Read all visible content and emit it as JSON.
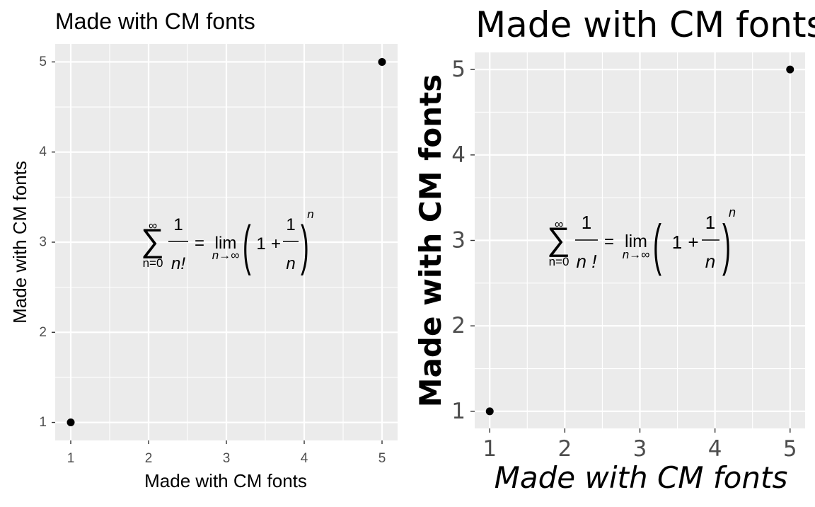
{
  "chart_data": [
    {
      "type": "scatter",
      "title": "Made with CM fonts",
      "xlabel": "Made with CM fonts",
      "ylabel": "Made with CM fonts",
      "x": [
        1,
        5
      ],
      "y": [
        1,
        5
      ],
      "xlim": [
        0.8,
        5.2
      ],
      "ylim": [
        0.8,
        5.2
      ],
      "xticks": [
        "1",
        "2",
        "3",
        "4",
        "5"
      ],
      "yticks": [
        "1",
        "2",
        "3",
        "4",
        "5"
      ],
      "annotation": {
        "x": 3,
        "y": 3,
        "sum_upper": "∞",
        "sum_lower": "n=0",
        "frac1_num": "1",
        "frac1_den": "n!",
        "equals": "=",
        "lim": "lim",
        "lim_sub": "n→∞",
        "one": "1",
        "plus": "+",
        "frac2_num": "1",
        "frac2_den": "n",
        "exponent": "n"
      },
      "grid": true,
      "panel_color": "#ebebeb",
      "point_color": "#000000"
    },
    {
      "type": "scatter",
      "title": "Made with CM fonts",
      "xlabel": "Made with CM fonts",
      "ylabel": "Made with CM fonts",
      "x": [
        1,
        5
      ],
      "y": [
        1,
        5
      ],
      "xlim": [
        0.8,
        5.2
      ],
      "ylim": [
        0.8,
        5.2
      ],
      "xticks": [
        "1",
        "2",
        "3",
        "4",
        "5"
      ],
      "yticks": [
        "1",
        "2",
        "3",
        "4",
        "5"
      ],
      "annotation": {
        "x": 3,
        "y": 3,
        "sum_upper": "∞",
        "sum_lower": "n=0",
        "frac1_num": "1",
        "frac1_den": "n !",
        "equals": "=",
        "lim": "lim",
        "lim_sub": "n→∞",
        "one": "1",
        "plus": "+",
        "frac2_num": "1",
        "frac2_den": "n",
        "exponent": "n"
      },
      "grid": true,
      "panel_color": "#ebebeb",
      "point_color": "#000000"
    }
  ]
}
